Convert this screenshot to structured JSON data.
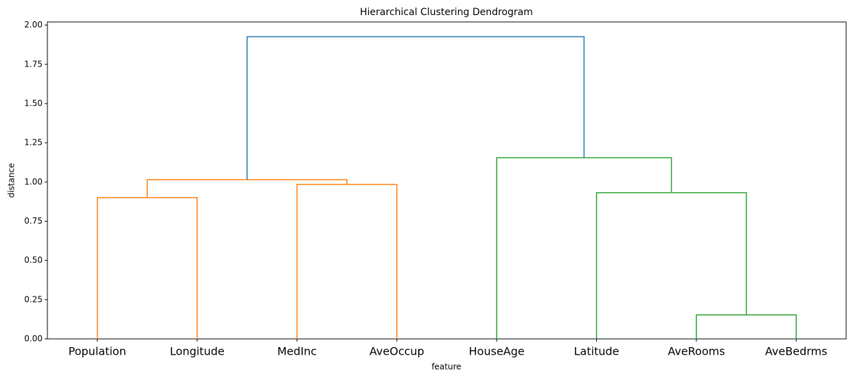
{
  "chart_data": {
    "type": "dendrogram",
    "title": "Hierarchical Clustering Dendrogram",
    "x_label": "feature",
    "y_label": "distance",
    "categories": [
      "Population",
      "Longitude",
      "MedInc",
      "AveOccup",
      "HouseAge",
      "Latitude",
      "AveRooms",
      "AveBedrms"
    ],
    "merges": [
      {
        "left": 0,
        "right": 1,
        "height": 0.9,
        "color": "#ff7f0e"
      },
      {
        "left": 2,
        "right": 3,
        "height": 0.985,
        "color": "#ff7f0e"
      },
      {
        "left": 8,
        "right": 9,
        "height": 1.015,
        "color": "#ff7f0e"
      },
      {
        "left": 6,
        "right": 7,
        "height": 0.153,
        "color": "#2ca02c"
      },
      {
        "left": 5,
        "right": 11,
        "height": 0.932,
        "color": "#2ca02c"
      },
      {
        "left": 4,
        "right": 12,
        "height": 1.155,
        "color": "#2ca02c"
      },
      {
        "left": 10,
        "right": 13,
        "height": 1.926,
        "color": "#1f77b4"
      }
    ],
    "ylim": [
      0,
      2.02
    ],
    "yticks": [
      {
        "value": 0,
        "label": "0.00"
      },
      {
        "value": 0.25,
        "label": "0.25"
      },
      {
        "value": 0.5,
        "label": "0.50"
      },
      {
        "value": 0.75,
        "label": "0.75"
      },
      {
        "value": 1,
        "label": "1.00"
      },
      {
        "value": 1.25,
        "label": "1.25"
      },
      {
        "value": 1.5,
        "label": "1.50"
      },
      {
        "value": 1.75,
        "label": "1.75"
      },
      {
        "value": 2,
        "label": "2.00"
      }
    ]
  }
}
